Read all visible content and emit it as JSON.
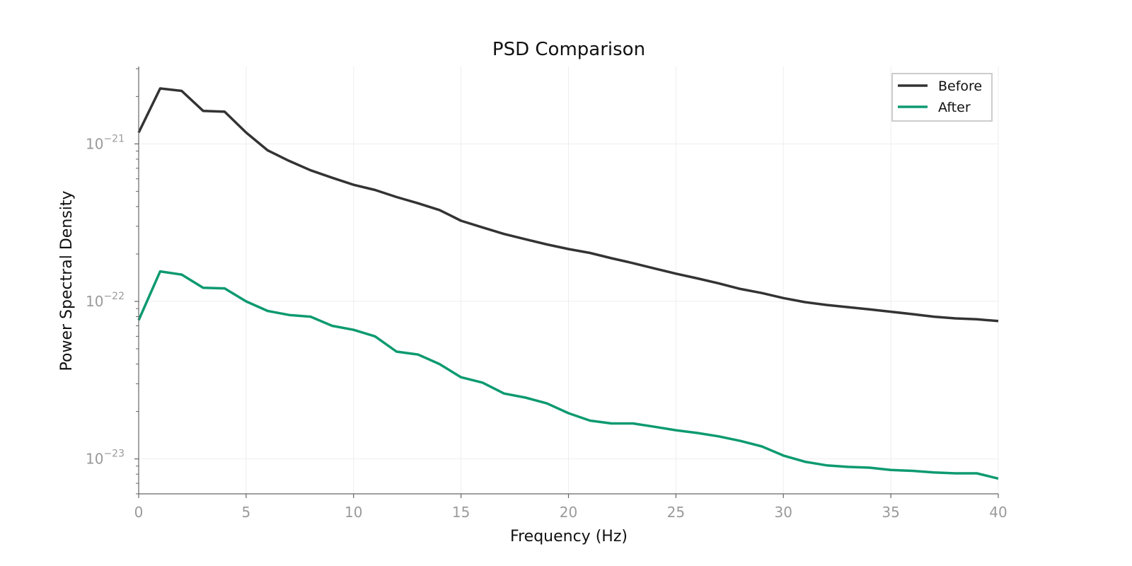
{
  "chart_data": {
    "type": "line",
    "title": "PSD Comparison",
    "xlabel": "Frequency (Hz)",
    "ylabel": "Power Spectral Density",
    "xlim": [
      0,
      40
    ],
    "ylim": [
      6e-24,
      3.1e-21
    ],
    "yscale": "log",
    "grid": true,
    "legend_position": "top-right",
    "x_ticks": [
      0,
      5,
      10,
      15,
      20,
      25,
      30,
      35,
      40
    ],
    "x_tick_labels": [
      "0",
      "5",
      "10",
      "15",
      "20",
      "25",
      "30",
      "35",
      "40"
    ],
    "y_ticks": [
      1e-23,
      1e-22,
      1e-21
    ],
    "y_tick_labels": [
      {
        "base": "10",
        "exp": "−23"
      },
      {
        "base": "10",
        "exp": "−22"
      },
      {
        "base": "10",
        "exp": "−21"
      }
    ],
    "x": [
      0,
      1,
      2,
      3,
      4,
      5,
      6,
      7,
      8,
      9,
      10,
      11,
      12,
      13,
      14,
      15,
      16,
      17,
      18,
      19,
      20,
      21,
      22,
      23,
      24,
      25,
      26,
      27,
      28,
      29,
      30,
      31,
      32,
      33,
      34,
      35,
      36,
      37,
      38,
      39,
      40
    ],
    "series": [
      {
        "name": "Before",
        "color": "#333333",
        "values": [
          1.18e-21,
          2.25e-21,
          2.17e-21,
          1.62e-21,
          1.6e-21,
          1.18e-21,
          9.1e-22,
          7.8e-22,
          6.8e-22,
          6.1e-22,
          5.5e-22,
          5.1e-22,
          4.6e-22,
          4.2e-22,
          3.8e-22,
          3.25e-22,
          2.95e-22,
          2.68e-22,
          2.48e-22,
          2.3e-22,
          2.15e-22,
          2.03e-22,
          1.88e-22,
          1.75e-22,
          1.62e-22,
          1.5e-22,
          1.4e-22,
          1.3e-22,
          1.2e-22,
          1.13e-22,
          1.05e-22,
          9.9e-23,
          9.5e-23,
          9.2e-23,
          8.9e-23,
          8.6e-23,
          8.3e-23,
          8e-23,
          7.8e-23,
          7.7e-23,
          7.5e-23
        ]
      },
      {
        "name": "After",
        "color": "#0d9a70",
        "values": [
          7.6e-23,
          1.55e-22,
          1.48e-22,
          1.22e-22,
          1.21e-22,
          1e-22,
          8.7e-23,
          8.2e-23,
          8e-23,
          7e-23,
          6.6e-23,
          6e-23,
          4.8e-23,
          4.6e-23,
          4e-23,
          3.3e-23,
          3.05e-23,
          2.6e-23,
          2.45e-23,
          2.25e-23,
          1.95e-23,
          1.75e-23,
          1.68e-23,
          1.68e-23,
          1.6e-23,
          1.52e-23,
          1.46e-23,
          1.39e-23,
          1.3e-23,
          1.2e-23,
          1.05e-23,
          9.6e-24,
          9.1e-24,
          8.9e-24,
          8.8e-24,
          8.5e-24,
          8.4e-24,
          8.2e-24,
          8.1e-24,
          8.1e-24,
          7.5e-24
        ]
      }
    ]
  }
}
